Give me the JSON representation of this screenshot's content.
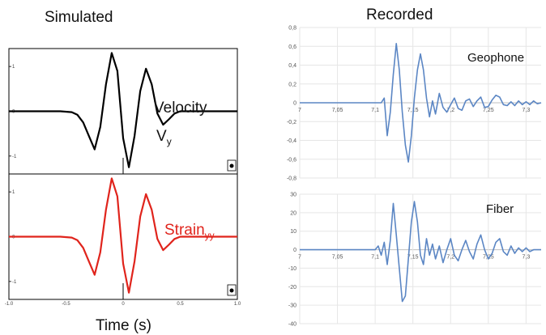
{
  "titles": {
    "left": "Simulated",
    "right": "Recorded",
    "time_axis": "Time (s)"
  },
  "labels": {
    "velocity": "Velocity",
    "velocity_symbol": "V",
    "velocity_sub": "y",
    "strain": "Strain",
    "strain_sub": "yy",
    "geophone": "Geophone",
    "fiber": "Fiber"
  },
  "colors": {
    "velocity": "#000000",
    "strain": "#e0241c",
    "recorded": "#5b86c4"
  },
  "chart_data": [
    {
      "type": "line",
      "name": "simulated-velocity",
      "xlim": [
        -1,
        1
      ],
      "ylim": [
        -1.4,
        1.4
      ],
      "y_ticks": [
        "1",
        "0",
        "-1"
      ],
      "series": [
        {
          "x": [
            -1,
            -0.55,
            -0.45,
            -0.4,
            -0.35,
            -0.3,
            -0.25,
            -0.2,
            -0.15,
            -0.1,
            -0.05,
            0,
            0.05,
            0.1,
            0.15,
            0.2,
            0.25,
            0.3,
            0.35,
            0.4,
            0.45,
            0.5,
            0.55,
            1
          ],
          "y": [
            0,
            0,
            -0.02,
            -0.08,
            -0.25,
            -0.55,
            -0.85,
            -0.35,
            0.6,
            1.3,
            0.9,
            -0.6,
            -1.25,
            -0.55,
            0.45,
            0.95,
            0.6,
            -0.05,
            -0.3,
            -0.18,
            -0.05,
            0,
            0,
            0
          ]
        }
      ]
    },
    {
      "type": "line",
      "name": "simulated-strain",
      "xlim": [
        -1,
        1
      ],
      "ylim": [
        -1.4,
        1.4
      ],
      "y_ticks": [
        "1",
        "0",
        "-1"
      ],
      "x_ticks": [
        "-1.0",
        "-0.5",
        "0",
        "0.5",
        "1.0"
      ],
      "series": [
        {
          "x": [
            -1,
            -0.55,
            -0.45,
            -0.4,
            -0.35,
            -0.3,
            -0.25,
            -0.2,
            -0.15,
            -0.1,
            -0.05,
            0,
            0.05,
            0.1,
            0.15,
            0.2,
            0.25,
            0.3,
            0.35,
            0.4,
            0.45,
            0.5,
            0.55,
            1
          ],
          "y": [
            0,
            0,
            -0.02,
            -0.08,
            -0.25,
            -0.55,
            -0.85,
            -0.35,
            0.6,
            1.3,
            0.9,
            -0.6,
            -1.25,
            -0.55,
            0.45,
            0.95,
            0.6,
            -0.05,
            -0.3,
            -0.18,
            -0.05,
            0,
            0,
            0
          ]
        }
      ]
    },
    {
      "type": "line",
      "name": "recorded-geophone",
      "xlim": [
        7,
        7.32
      ],
      "ylim": [
        -0.8,
        0.8
      ],
      "x_ticks": [
        "7",
        "7,05",
        "7,1",
        "7,15",
        "7,2",
        "7,25",
        "7,3"
      ],
      "y_ticks": [
        "0,8",
        "0,6",
        "0,4",
        "0,2",
        "0",
        "-0,2",
        "-0,4",
        "-0,6",
        "-0,8"
      ],
      "series": [
        {
          "x": [
            7,
            7.108,
            7.112,
            7.116,
            7.12,
            7.124,
            7.128,
            7.132,
            7.136,
            7.14,
            7.144,
            7.148,
            7.152,
            7.156,
            7.16,
            7.164,
            7.168,
            7.172,
            7.176,
            7.18,
            7.185,
            7.19,
            7.195,
            7.2,
            7.205,
            7.21,
            7.215,
            7.22,
            7.225,
            7.23,
            7.235,
            7.24,
            7.245,
            7.25,
            7.255,
            7.26,
            7.265,
            7.27,
            7.275,
            7.28,
            7.285,
            7.29,
            7.295,
            7.3,
            7.305,
            7.31,
            7.315,
            7.32
          ],
          "y": [
            0,
            0,
            0.05,
            -0.35,
            -0.1,
            0.3,
            0.63,
            0.35,
            -0.1,
            -0.45,
            -0.63,
            -0.35,
            0.05,
            0.35,
            0.52,
            0.35,
            0.05,
            -0.15,
            0.02,
            -0.12,
            0.1,
            -0.05,
            -0.1,
            -0.02,
            0.05,
            -0.06,
            -0.08,
            0.02,
            0.04,
            -0.04,
            0.02,
            0.06,
            -0.05,
            -0.04,
            0.03,
            0.08,
            0.06,
            -0.02,
            -0.03,
            0.01,
            -0.03,
            0.02,
            -0.02,
            0.01,
            -0.02,
            0.02,
            -0.01,
            0
          ]
        }
      ]
    },
    {
      "type": "line",
      "name": "recorded-fiber",
      "xlim": [
        7,
        7.32
      ],
      "ylim": [
        -40,
        30
      ],
      "x_ticks": [
        "7",
        "7,05",
        "7,1",
        "7,15",
        "7,2",
        "7,25",
        "7,3"
      ],
      "y_ticks": [
        "30",
        "20",
        "10",
        "0",
        "-10",
        "-20",
        "-30",
        "-40"
      ],
      "series": [
        {
          "x": [
            7,
            7.1,
            7.104,
            7.108,
            7.112,
            7.116,
            7.12,
            7.124,
            7.128,
            7.132,
            7.136,
            7.14,
            7.144,
            7.148,
            7.152,
            7.156,
            7.16,
            7.164,
            7.168,
            7.172,
            7.176,
            7.18,
            7.185,
            7.19,
            7.195,
            7.2,
            7.205,
            7.21,
            7.215,
            7.22,
            7.225,
            7.23,
            7.235,
            7.24,
            7.245,
            7.25,
            7.255,
            7.26,
            7.265,
            7.27,
            7.275,
            7.28,
            7.285,
            7.29,
            7.295,
            7.3,
            7.305,
            7.31,
            7.315,
            7.32
          ],
          "y": [
            0,
            0,
            2,
            -3,
            4,
            -8,
            5,
            25,
            8,
            -10,
            -28,
            -25,
            -5,
            15,
            26,
            15,
            -3,
            -8,
            6,
            -3,
            3,
            -5,
            2,
            -7,
            0,
            6,
            -3,
            -6,
            0,
            5,
            -1,
            -5,
            3,
            8,
            0,
            -5,
            -2,
            4,
            6,
            -1,
            -3,
            2,
            -2,
            1,
            -1,
            1,
            -1,
            0,
            0,
            0
          ]
        }
      ]
    }
  ]
}
